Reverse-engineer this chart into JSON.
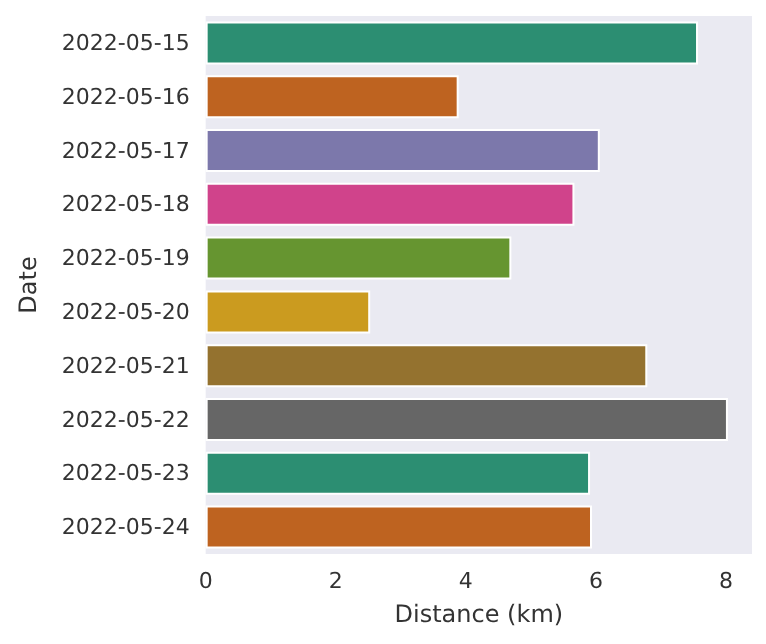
{
  "chart_data": {
    "type": "bar",
    "orientation": "horizontal",
    "xlabel": "Distance (km)",
    "ylabel": "Date",
    "categories": [
      "2022-05-15",
      "2022-05-16",
      "2022-05-17",
      "2022-05-18",
      "2022-05-19",
      "2022-05-20",
      "2022-05-21",
      "2022-05-22",
      "2022-05-23",
      "2022-05-24"
    ],
    "values": [
      7.57,
      3.89,
      6.06,
      5.67,
      4.7,
      2.53,
      6.79,
      8.03,
      5.91,
      5.94
    ],
    "colors": [
      "#2c8e72",
      "#be6320",
      "#7c78ab",
      "#d0438b",
      "#669530",
      "#cb9b1f",
      "#94722f",
      "#666666",
      "#2c8e72",
      "#be6320"
    ],
    "xlim": [
      0,
      8.4
    ],
    "xticks": [
      0,
      2,
      4,
      6,
      8
    ],
    "grid": false
  }
}
